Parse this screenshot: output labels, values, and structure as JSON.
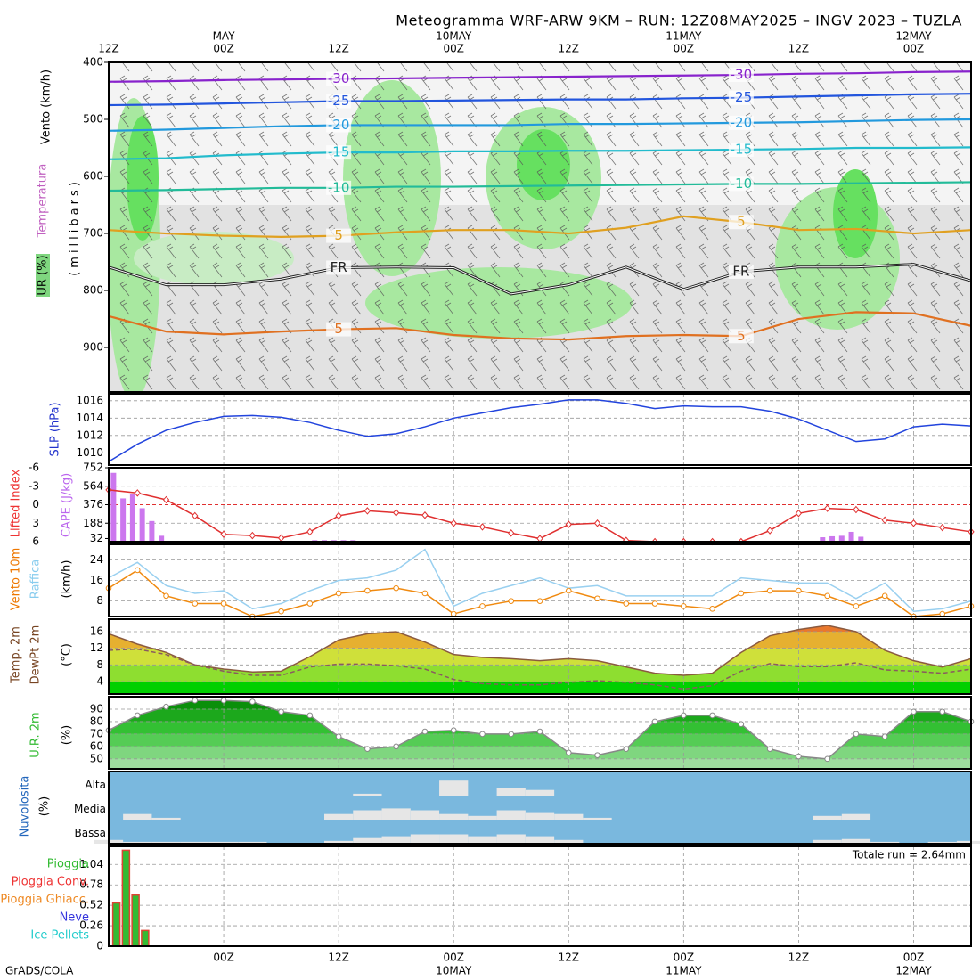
{
  "title": "Meteogramma WRF-ARW 9KM – RUN: 12Z08MAY2025 – INGV 2023 – TUZLA",
  "footer": "GrADS/COLA",
  "time_axis": {
    "xlim": [
      0,
      90
    ],
    "top_ticks": [
      {
        "value": 0,
        "label": "12Z"
      },
      {
        "value": 12,
        "label": "00Z"
      },
      {
        "value": 24,
        "label": "12Z"
      },
      {
        "value": 36,
        "label": "00Z"
      },
      {
        "value": 48,
        "label": "12Z"
      },
      {
        "value": 60,
        "label": "00Z"
      },
      {
        "value": 72,
        "label": "12Z"
      },
      {
        "value": 84,
        "label": "00Z"
      }
    ],
    "top_dates": [
      {
        "value": 12,
        "label": "MAY"
      },
      {
        "value": 36,
        "label": "10MAY"
      },
      {
        "value": 60,
        "label": "11MAY"
      },
      {
        "value": 84,
        "label": "12MAY"
      }
    ],
    "bottom_ticks": [
      {
        "value": 12,
        "label": "00Z"
      },
      {
        "value": 24,
        "label": "12Z"
      },
      {
        "value": 36,
        "label": "00Z"
      },
      {
        "value": 48,
        "label": "12Z"
      },
      {
        "value": 60,
        "label": "00Z"
      },
      {
        "value": 72,
        "label": "12Z"
      },
      {
        "value": 84,
        "label": "00Z"
      }
    ],
    "bottom_dates": [
      {
        "value": 36,
        "label": "10MAY"
      },
      {
        "value": 60,
        "label": "11MAY"
      },
      {
        "value": 84,
        "label": "12MAY"
      }
    ]
  },
  "chart_data": [
    {
      "type": "line",
      "labels": [
        {
          "text": "Vento (km/h)",
          "color": "#000000"
        },
        {
          "text": "Temperatura",
          "color": "#c060c0"
        },
        {
          "text": "UR (%)",
          "color": "#000000"
        },
        {
          "text": "(millibars)",
          "color": "#000000"
        }
      ],
      "ylim": [
        978,
        400
      ],
      "yticks": [
        400,
        500,
        600,
        700,
        800,
        900
      ],
      "grid": false,
      "line_labels": true,
      "x": [
        0,
        6,
        12,
        18,
        24,
        30,
        36,
        42,
        48,
        54,
        60,
        66,
        72,
        78,
        84,
        90
      ],
      "series": [
        {
          "name": "-30",
          "color": "#8822cc",
          "mark": "line",
          "values": [
            434,
            433,
            431,
            430,
            429,
            428,
            427,
            426,
            425,
            424,
            423,
            422,
            420,
            419,
            417,
            416
          ]
        },
        {
          "name": "-25",
          "color": "#2255dd",
          "mark": "line",
          "values": [
            475,
            474,
            472,
            470,
            468,
            468,
            467,
            466,
            465,
            465,
            463,
            462,
            460,
            458,
            456,
            455
          ]
        },
        {
          "name": "-20",
          "color": "#2299dd",
          "mark": "line",
          "values": [
            520,
            518,
            515,
            512,
            510,
            510,
            510,
            510,
            508,
            508,
            507,
            506,
            505,
            503,
            501,
            500
          ]
        },
        {
          "name": "-15",
          "color": "#22bbcc",
          "mark": "line",
          "values": [
            570,
            568,
            563,
            560,
            558,
            558,
            556,
            556,
            555,
            555,
            554,
            553,
            552,
            550,
            550,
            549
          ]
        },
        {
          "name": "-10",
          "color": "#22bb99",
          "mark": "line",
          "values": [
            625,
            624,
            622,
            620,
            620,
            618,
            618,
            617,
            616,
            615,
            614,
            613,
            613,
            612,
            611,
            610
          ]
        },
        {
          "name": "5",
          "color": "#e0a020",
          "mark": "line",
          "values": [
            694,
            700,
            704,
            706,
            704,
            698,
            694,
            694,
            700,
            690,
            670,
            680,
            694,
            692,
            700,
            694
          ]
        },
        {
          "name": "FR",
          "color": "#222222",
          "mark": "line",
          "values": [
            759,
            790,
            790,
            780,
            760,
            759,
            760,
            806,
            790,
            759,
            798,
            767,
            759,
            759,
            754,
            783
          ]
        },
        {
          "name": "5",
          "color": "#e07020",
          "mark": "line",
          "values": [
            845,
            872,
            877,
            872,
            868,
            866,
            878,
            884,
            886,
            880,
            878,
            880,
            850,
            838,
            840,
            862
          ]
        }
      ]
    },
    {
      "type": "line",
      "labels": [
        {
          "text": "SLP (hPa)",
          "color": "#2233cc"
        }
      ],
      "ylim": [
        1008.6,
        1016.8
      ],
      "yticks": [
        1010,
        1012,
        1014,
        1016
      ],
      "grid": true,
      "x": [
        0,
        3,
        6,
        9,
        12,
        15,
        18,
        21,
        24,
        27,
        30,
        33,
        36,
        39,
        42,
        45,
        48,
        51,
        54,
        57,
        60,
        63,
        66,
        69,
        72,
        75,
        78,
        81,
        84,
        87,
        90
      ],
      "series": [
        {
          "color": "#2244dd",
          "mark": "line",
          "values": [
            1009.0,
            1011.0,
            1012.6,
            1013.5,
            1014.2,
            1014.3,
            1014.1,
            1013.5,
            1012.6,
            1011.9,
            1012.2,
            1013.0,
            1014.0,
            1014.6,
            1015.2,
            1015.6,
            1016.1,
            1016.1,
            1015.7,
            1015.1,
            1015.4,
            1015.3,
            1015.3,
            1014.8,
            1013.9,
            1012.6,
            1011.3,
            1011.6,
            1013.0,
            1013.3,
            1013.1
          ]
        }
      ]
    },
    {
      "type": "combo",
      "labels": [
        {
          "text": "Lifted Index",
          "color": "#ee3333"
        },
        {
          "text": "CAPE (J/kg)",
          "color": "#bb66ee"
        }
      ],
      "ylim": [
        6,
        -6
      ],
      "yticks": [
        -6,
        -3,
        0,
        3,
        6
      ],
      "y2lim": [
        0,
        752
      ],
      "y2ticks": [
        32,
        188,
        376,
        564,
        752
      ],
      "grid": true,
      "zero_line": true,
      "x": [
        0,
        3,
        6,
        9,
        12,
        15,
        18,
        21,
        24,
        27,
        30,
        33,
        36,
        39,
        42,
        45,
        48,
        51,
        54,
        57,
        60,
        63,
        66,
        69,
        72,
        75,
        78,
        81,
        84,
        87,
        90
      ],
      "series": [
        {
          "color": "#cc77ee",
          "mark": "bar",
          "axis": "y2",
          "x": [
            0.5,
            1.5,
            2.5,
            3.5,
            4.5,
            5.5,
            21.5,
            22.5,
            23.5,
            24.5,
            25.5,
            74.5,
            75.5,
            76.5,
            77.5,
            78.5
          ],
          "values": [
            700,
            440,
            480,
            340,
            210,
            60,
            15,
            15,
            15,
            15,
            15,
            45,
            55,
            60,
            100,
            50
          ]
        },
        {
          "color": "#e03030",
          "mark": "line",
          "marker": "diamond",
          "values": [
            -2.4,
            -1.9,
            -0.8,
            1.8,
            4.8,
            5.0,
            5.4,
            4.4,
            1.8,
            1.0,
            1.3,
            1.7,
            3.0,
            3.6,
            4.6,
            5.5,
            3.2,
            3.0,
            5.8,
            6.0,
            6.0,
            6.0,
            6.0,
            4.2,
            1.4,
            0.6,
            0.8,
            2.5,
            3.0,
            3.7,
            4.4
          ]
        }
      ]
    },
    {
      "type": "line",
      "labels": [
        {
          "text": "Vento 10m",
          "color": "#ee7700"
        },
        {
          "text": "Raffica",
          "color": "#88ccee"
        },
        {
          "text": "(km/h)",
          "color": "#000000"
        }
      ],
      "ylim": [
        2,
        30
      ],
      "yticks": [
        8,
        16,
        24
      ],
      "grid": true,
      "x": [
        0,
        3,
        6,
        9,
        12,
        15,
        18,
        21,
        24,
        27,
        30,
        33,
        36,
        39,
        42,
        45,
        48,
        51,
        54,
        57,
        60,
        63,
        66,
        69,
        72,
        75,
        78,
        81,
        84,
        87,
        90
      ],
      "series": [
        {
          "color": "#99d0f0",
          "mark": "line",
          "values": [
            17,
            23,
            14,
            11,
            12,
            5,
            7,
            12,
            16,
            17,
            20,
            28,
            6,
            11,
            14,
            17,
            13,
            14,
            10,
            10,
            10,
            10,
            17,
            16,
            15,
            15,
            9,
            15,
            4,
            5,
            8
          ]
        },
        {
          "color": "#f08a10",
          "mark": "line",
          "marker": "circle",
          "values": [
            13,
            20,
            10,
            7,
            7,
            2,
            4,
            7,
            11,
            12,
            13,
            11,
            3,
            6,
            8,
            8,
            12,
            9,
            7,
            7,
            6,
            5,
            11,
            12,
            12,
            10,
            6,
            10,
            2,
            3,
            6
          ]
        }
      ]
    },
    {
      "type": "area",
      "labels": [
        {
          "text": "Temp. 2m",
          "color": "#774422"
        },
        {
          "text": "DewPt 2m",
          "color": "#774422"
        },
        {
          "text": "(°C)",
          "color": "#000000"
        }
      ],
      "ylim": [
        1,
        19
      ],
      "yticks": [
        4,
        8,
        12,
        16
      ],
      "grid": true,
      "band_colors": [
        "#00d000",
        "#8ede30",
        "#cfe03a",
        "#e6b030",
        "#e8782e"
      ],
      "x": [
        0,
        3,
        6,
        9,
        12,
        15,
        18,
        21,
        24,
        27,
        30,
        33,
        36,
        39,
        42,
        45,
        48,
        51,
        54,
        57,
        60,
        63,
        66,
        69,
        72,
        75,
        78,
        81,
        84,
        87,
        90
      ],
      "series": [
        {
          "color": "#8a5a40",
          "mark": "area",
          "values": [
            15.5,
            13,
            11,
            8,
            7,
            6.3,
            6.5,
            10,
            14,
            15.5,
            16,
            13.5,
            10.5,
            9.8,
            9.5,
            9,
            9.5,
            9,
            7.5,
            6,
            5.5,
            6,
            11,
            15,
            16.5,
            17.5,
            16,
            11.5,
            9,
            7.5,
            9.5
          ]
        },
        {
          "color": "#8a5a60",
          "mark": "line",
          "dash": true,
          "values": [
            11.5,
            11.8,
            10.5,
            8,
            6.5,
            5.5,
            5.5,
            7.5,
            8.2,
            8.2,
            7.8,
            7,
            4.5,
            3.5,
            3.2,
            3.2,
            3.8,
            4.2,
            3.8,
            3.2,
            2.2,
            3,
            6.5,
            8.3,
            7.6,
            7.6,
            8.5,
            6.8,
            6.5,
            6,
            7
          ]
        }
      ]
    },
    {
      "type": "area",
      "labels": [
        {
          "text": "U.R. 2m",
          "color": "#33bb33"
        },
        {
          "text": "(%)",
          "color": "#000000"
        }
      ],
      "ylim": [
        42,
        100
      ],
      "yticks": [
        50,
        60,
        70,
        80,
        90
      ],
      "grid": true,
      "band_colors": [
        "#9edc9e",
        "#7fd67f",
        "#55cc55",
        "#33c033",
        "#1ca81c",
        "#0a8f0a"
      ],
      "x": [
        0,
        3,
        6,
        9,
        12,
        15,
        18,
        21,
        24,
        27,
        30,
        33,
        36,
        39,
        42,
        45,
        48,
        51,
        54,
        57,
        60,
        63,
        66,
        69,
        72,
        75,
        78,
        81,
        84,
        87,
        90
      ],
      "series": [
        {
          "color": "#888888",
          "mark": "area",
          "marker": "circle",
          "values": [
            73,
            85,
            92,
            97,
            97,
            96,
            88,
            85,
            68,
            58,
            60,
            72,
            73,
            70,
            70,
            72,
            55,
            53,
            58,
            80,
            85,
            85,
            78,
            58,
            52,
            50,
            70,
            68,
            88,
            88,
            80
          ]
        }
      ]
    },
    {
      "type": "bar",
      "labels": [
        {
          "text": "Nuvolosita",
          "color": "#2266bb"
        },
        {
          "text": "(%)",
          "color": "#000000"
        }
      ],
      "ylim": [
        0,
        100
      ],
      "grid": false,
      "background": "#7ab8de",
      "color": "#e6e6e6",
      "x": [
        0,
        3,
        6,
        9,
        12,
        15,
        18,
        21,
        24,
        27,
        30,
        33,
        36,
        39,
        42,
        45,
        48,
        51,
        54,
        57,
        60,
        63,
        66,
        69,
        72,
        75,
        78,
        81,
        84,
        87,
        90
      ],
      "series": [
        {
          "name": "Alta",
          "mark": "layer",
          "values": [
            0,
            0,
            0,
            0,
            0,
            0,
            0,
            0,
            0,
            10,
            0,
            0,
            80,
            0,
            40,
            30,
            0,
            0,
            0,
            0,
            0,
            0,
            0,
            0,
            0,
            0,
            0,
            0,
            0,
            0,
            0
          ]
        },
        {
          "name": "Media",
          "mark": "layer",
          "values": [
            0,
            30,
            10,
            0,
            0,
            0,
            0,
            0,
            30,
            50,
            60,
            50,
            30,
            20,
            50,
            40,
            30,
            10,
            0,
            0,
            0,
            0,
            0,
            0,
            0,
            20,
            30,
            0,
            0,
            0,
            0
          ]
        },
        {
          "name": "Bassa",
          "mark": "layer",
          "values": [
            20,
            10,
            10,
            10,
            10,
            10,
            5,
            5,
            15,
            30,
            40,
            50,
            50,
            40,
            50,
            40,
            20,
            0,
            0,
            0,
            0,
            0,
            0,
            0,
            0,
            20,
            25,
            10,
            0,
            10,
            15
          ]
        }
      ]
    },
    {
      "type": "bar",
      "ylim": [
        0,
        1.27
      ],
      "yticks": [
        0,
        0.26,
        0.52,
        0.78,
        1.04
      ],
      "grid": true,
      "annotation": "Totale run = 2.64mm",
      "legend": [
        {
          "name": "Pioggia",
          "color": "#33bb33"
        },
        {
          "name": "Pioggia Conv.",
          "color": "#ee3333"
        },
        {
          "name": "Pioggia Ghiacc.",
          "color": "#ee8822"
        },
        {
          "name": "Neve",
          "color": "#3333dd"
        },
        {
          "name": "Ice Pellets",
          "color": "#22cccc"
        }
      ],
      "series": [
        {
          "color": "#33bb33",
          "edgecolor": "#dd4433",
          "mark": "bar",
          "x": [
            0.8,
            1.8,
            2.8,
            3.8
          ],
          "values": [
            0.55,
            1.22,
            0.65,
            0.2
          ]
        }
      ]
    }
  ]
}
